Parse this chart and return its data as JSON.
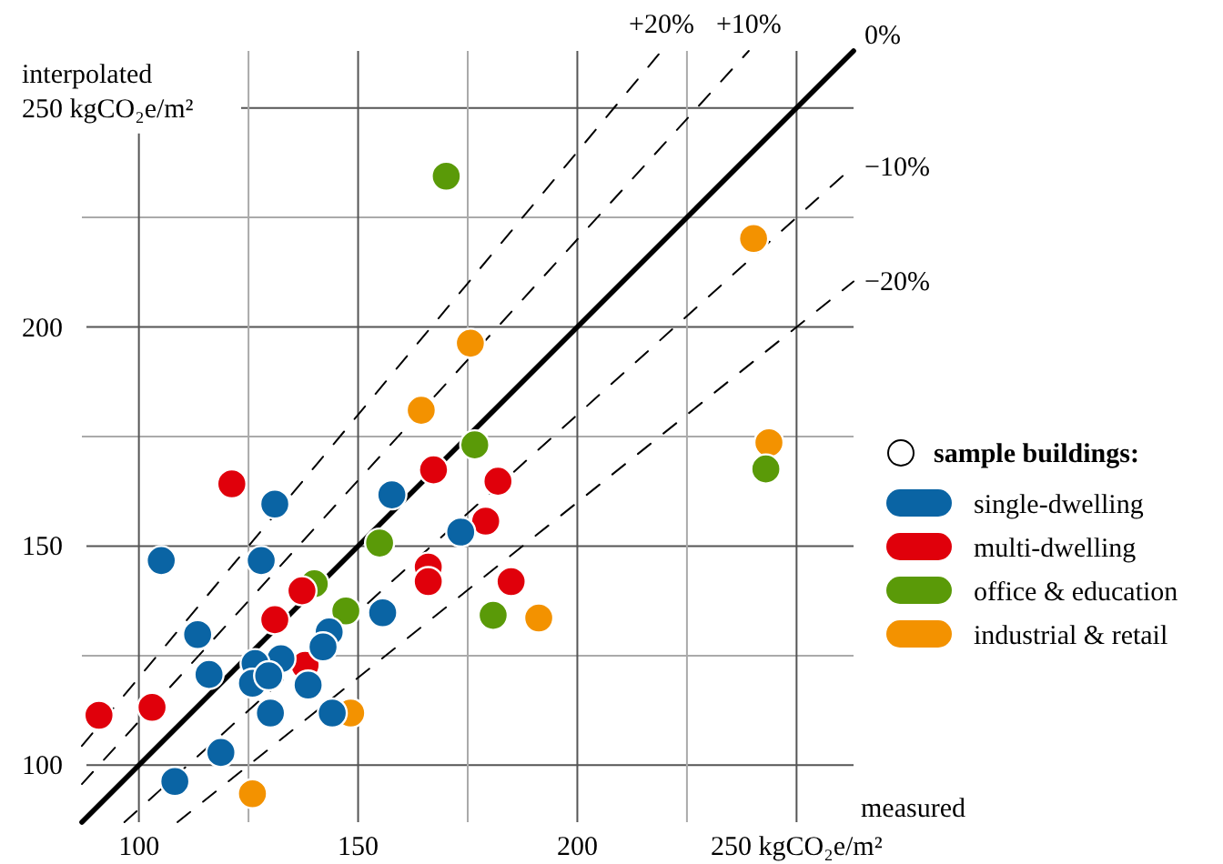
{
  "chart_data": {
    "type": "scatter",
    "xlabel": "measured",
    "ylabel": "interpolated",
    "legend_title": "sample buildings:",
    "legend": "right",
    "grid": true,
    "xlim": [
      87,
      263
    ],
    "ylim": [
      87,
      263
    ],
    "xticks": [
      100,
      {
        "value": 125,
        "label": null
      },
      150,
      {
        "value": 175,
        "label": null
      },
      200,
      {
        "value": 225,
        "label": null
      },
      {
        "value": 250,
        "label": "250 kgCO₂e/m²"
      }
    ],
    "yticks": [
      100,
      {
        "value": 125,
        "label": null
      },
      150,
      {
        "value": 175,
        "label": null
      },
      200,
      {
        "value": 225,
        "label": null
      },
      {
        "value": 250,
        "label": "250 kgCO₂e/m²"
      }
    ],
    "series": [
      {
        "name": "single-dwelling",
        "marker": "circle",
        "color": "#0a64a4",
        "x": [
          105.1,
          131,
          127.9,
          157.7,
          173.4,
          113.4,
          116,
          155.6,
          143.4,
          142,
          132.4,
          126.5,
          125.9,
          129.6,
          138.6,
          130,
          144.1,
          118.7,
          108.2
        ],
        "values": [
          146.7,
          159.6,
          146.7,
          161.7,
          153.2,
          129.8,
          120.7,
          134.8,
          130.4,
          127,
          124.3,
          123.2,
          118.7,
          120.4,
          118.3,
          111.9,
          111.9,
          102.9,
          96.3
        ]
      },
      {
        "name": "multi-dwelling",
        "marker": "circle",
        "color": "#e0000b",
        "x": [
          90.9,
          103,
          121.2,
          131,
          137.2,
          167.2,
          181.9,
          179.1,
          166,
          166,
          184.9,
          137.9
        ],
        "values": [
          111.4,
          113.2,
          164.2,
          133.2,
          139.8,
          167.4,
          164.8,
          155.7,
          145.2,
          141.9,
          141.9,
          122.8
        ]
      },
      {
        "name": "office & education",
        "marker": "circle",
        "color": "#5a9a08",
        "x": [
          176.6,
          154.9,
          140,
          147.2,
          180.8,
          170.1,
          243
        ],
        "values": [
          173.1,
          150.7,
          141.4,
          135.2,
          134.2,
          234.4,
          167.6
        ]
      },
      {
        "name": "industrial & retail",
        "marker": "circle",
        "color": "#f39200",
        "x": [
          175.6,
          164.4,
          191.2,
          148.3,
          125.9,
          240.2,
          243.7
        ],
        "values": [
          196.3,
          181,
          133.6,
          111.9,
          93.5,
          220.2,
          173.6
        ]
      },
      {
        "name": "+20%",
        "type": "line",
        "line_style": "dashed",
        "color": "#000000",
        "x": [
          87,
          219.2
        ],
        "values": [
          104.4,
          263
        ]
      },
      {
        "name": "+10%",
        "type": "line",
        "line_style": "dashed",
        "color": "#000000",
        "x": [
          87,
          239.1
        ],
        "values": [
          95.7,
          263
        ]
      },
      {
        "name": "0%",
        "type": "line",
        "line_style": "solid",
        "color": "#000000",
        "x": [
          87,
          263
        ],
        "values": [
          87,
          263
        ]
      },
      {
        "name": "−10%",
        "type": "line",
        "line_style": "dashed",
        "color": "#000000",
        "x": [
          96.7,
          263
        ],
        "values": [
          87,
          236.7
        ]
      },
      {
        "name": "−20%",
        "type": "line",
        "line_style": "dashed",
        "color": "#000000",
        "x": [
          108.8,
          263
        ],
        "values": [
          87,
          210.4
        ]
      }
    ]
  }
}
